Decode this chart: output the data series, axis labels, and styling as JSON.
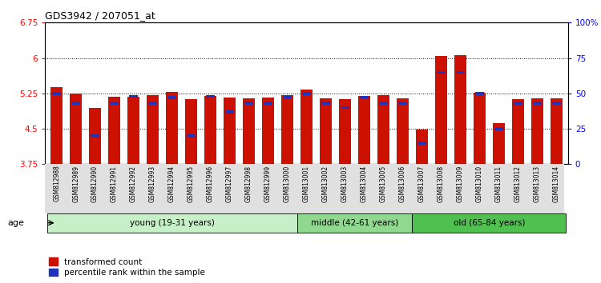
{
  "title": "GDS3942 / 207051_at",
  "samples": [
    "GSM812988",
    "GSM812989",
    "GSM812990",
    "GSM812991",
    "GSM812992",
    "GSM812993",
    "GSM812994",
    "GSM812995",
    "GSM812996",
    "GSM812997",
    "GSM812998",
    "GSM812999",
    "GSM813000",
    "GSM813001",
    "GSM813002",
    "GSM813003",
    "GSM813004",
    "GSM813005",
    "GSM813006",
    "GSM813007",
    "GSM813008",
    "GSM813009",
    "GSM813010",
    "GSM813011",
    "GSM813012",
    "GSM813013",
    "GSM813014"
  ],
  "red_values": [
    5.38,
    5.24,
    4.94,
    5.18,
    5.18,
    5.22,
    5.28,
    5.12,
    5.19,
    5.16,
    5.14,
    5.16,
    5.22,
    5.33,
    5.14,
    5.13,
    5.19,
    5.22,
    5.14,
    4.48,
    6.05,
    6.06,
    5.27,
    4.62,
    5.12,
    5.14,
    5.14
  ],
  "blue_values": [
    50,
    43,
    20,
    43,
    48,
    43,
    47,
    20,
    48,
    37,
    43,
    43,
    47,
    50,
    43,
    40,
    47,
    43,
    43,
    15,
    65,
    65,
    50,
    25,
    43,
    43,
    43
  ],
  "ylim_left": [
    3.75,
    6.75
  ],
  "ylim_right": [
    0,
    100
  ],
  "yticks_left": [
    3.75,
    4.5,
    5.25,
    6.0,
    6.75
  ],
  "yticks_right": [
    0,
    25,
    50,
    75,
    100
  ],
  "ytick_labels_left": [
    "3.75",
    "4.5",
    "5.25",
    "6",
    "6.75"
  ],
  "ytick_labels_right": [
    "0",
    "25",
    "50",
    "75",
    "100%"
  ],
  "grid_lines": [
    6.0,
    5.25,
    4.5
  ],
  "groups": [
    {
      "label": "young (19-31 years)",
      "start": 0,
      "end": 13,
      "color": "#c8f0c8"
    },
    {
      "label": "middle (42-61 years)",
      "start": 13,
      "end": 19,
      "color": "#90d890"
    },
    {
      "label": "old (65-84 years)",
      "start": 19,
      "end": 27,
      "color": "#50c050"
    }
  ],
  "bar_color_red": "#cc1100",
  "bar_color_blue": "#2233bb",
  "base_value": 3.75,
  "legend_labels": [
    "transformed count",
    "percentile rank within the sample"
  ],
  "age_label": "age",
  "bar_width": 0.6
}
